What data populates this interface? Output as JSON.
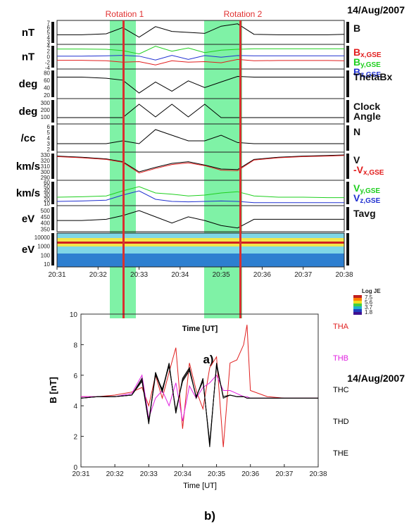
{
  "figure_a": {
    "date": "14/Aug/2007",
    "rotation_labels": [
      "Rotation 1",
      "Rotation 2"
    ],
    "x_ticks": [
      "20:31",
      "20:32",
      "20:33",
      "20:34",
      "20:35",
      "20:36",
      "20:37",
      "20:38"
    ],
    "xlabel": "Time [UT]",
    "caption": "a)",
    "panels": [
      {
        "left": "nT",
        "right": [
          "B"
        ],
        "ticks": [
          "7",
          "6",
          "5",
          "4",
          "3"
        ],
        "yrange": [
          2.5,
          7.5
        ]
      },
      {
        "left": "nT",
        "right": [
          "Bx,GSE",
          "By,GSE",
          "Bz,GSE"
        ],
        "ticks": [
          "4",
          "2",
          "0",
          "-2",
          "-4"
        ],
        "yrange": [
          -4.5,
          4.5
        ]
      },
      {
        "left": "deg",
        "right": [
          "ThetaBx"
        ],
        "ticks": [
          "80",
          "60",
          "40",
          "20"
        ],
        "yrange": [
          10,
          90
        ]
      },
      {
        "left": "deg",
        "right": [
          "Clock",
          "Angle"
        ],
        "ticks": [
          "300",
          "200",
          "100"
        ],
        "yrange": [
          0,
          360
        ]
      },
      {
        "left": "/cc",
        "right": [
          "N"
        ],
        "ticks": [
          "6",
          "5",
          "4",
          "3",
          "2"
        ],
        "yrange": [
          1.5,
          6.5
        ]
      },
      {
        "left": "km/s",
        "right": [
          "V",
          "-Vx,GSE"
        ],
        "ticks": [
          "330",
          "320",
          "310",
          "300",
          "290"
        ],
        "yrange": [
          285,
          335
        ]
      },
      {
        "left": "km/s",
        "right": [
          "Vy,GSE",
          "Vz,GSE"
        ],
        "ticks": [
          "60",
          "50",
          "40",
          "30",
          "20",
          "10"
        ],
        "yrange": [
          5,
          65
        ]
      },
      {
        "left": "eV",
        "right": [
          "Tavg"
        ],
        "ticks": [
          "500",
          "450",
          "400",
          "350"
        ],
        "yrange": [
          330,
          540
        ]
      },
      {
        "left": "eV",
        "right": [],
        "ticks": [
          "10000",
          "1000",
          "100",
          "10"
        ],
        "yrange": [
          1,
          4
        ]
      }
    ],
    "colorbar": {
      "title": "Log JE",
      "ticks": [
        "7.5",
        "5.6",
        "3.7",
        "1.8"
      ]
    },
    "colors": {
      "green_band": "#7ff2a6",
      "red_line": "#e03030",
      "bx": "#e21d1d",
      "by": "#1fcf1f",
      "bz": "#2030d0"
    }
  },
  "figure_b": {
    "date": "14/Aug/2007",
    "caption": "b)",
    "ylabel": "B [nT]",
    "xlabel": "Time [UT]",
    "y_ticks": [
      "0",
      "2",
      "4",
      "6",
      "8",
      "10"
    ],
    "x_ticks": [
      "20:31",
      "20:32",
      "20:33",
      "20:34",
      "20:35",
      "20:36",
      "20:37",
      "20:38"
    ],
    "legend": [
      {
        "name": "THA",
        "color": "#e02020"
      },
      {
        "name": "THB",
        "color": "#e020e0"
      },
      {
        "name": "THC",
        "color": "#000000"
      },
      {
        "name": "THD",
        "color": "#000000"
      },
      {
        "name": "THE",
        "color": "#000000"
      }
    ]
  },
  "chart_data": [
    {
      "type": "line",
      "title": "14/Aug/2007",
      "xlabel": "Time [UT]",
      "x_range": [
        "20:31",
        "20:38"
      ],
      "annotations": [
        {
          "label": "Rotation 1",
          "x_start": "20:32.4",
          "x_end": "20:32.9",
          "marker": "20:32.7"
        },
        {
          "label": "Rotation 2",
          "x_start": "20:34.6",
          "x_end": "20:35.5",
          "marker": "20:35.5"
        }
      ],
      "x": [
        31.0,
        31.6,
        32.2,
        32.6,
        33.0,
        33.4,
        33.8,
        34.2,
        34.6,
        35.0,
        35.4,
        35.8,
        36.4,
        37.0,
        37.6,
        38.0
      ],
      "series": [
        {
          "name": "B",
          "ylabel": "nT",
          "values": [
            4.5,
            4.5,
            4.7,
            6.0,
            4.0,
            6.2,
            5.2,
            5.0,
            4.8,
            6.3,
            6.8,
            4.6,
            4.5,
            4.5,
            4.5,
            4.6
          ]
        },
        {
          "name": "Bx,GSE",
          "ylabel": "nT",
          "values": [
            -1.3,
            -1.3,
            -1.5,
            -2.0,
            -1.8,
            -3.0,
            -1.5,
            -2.0,
            -1.8,
            -2.2,
            -1.0,
            -1.5,
            -1.4,
            -1.4,
            -1.4,
            -1.5
          ]
        },
        {
          "name": "By,GSE",
          "ylabel": "nT",
          "values": [
            2.8,
            2.8,
            2.7,
            2.2,
            1.0,
            3.8,
            2.0,
            3.2,
            1.5,
            2.4,
            2.7,
            2.9,
            2.9,
            2.9,
            2.9,
            2.9
          ]
        },
        {
          "name": "Bz,GSE",
          "ylabel": "nT",
          "values": [
            0.2,
            0.2,
            0.3,
            0.5,
            0.2,
            -1.2,
            0.5,
            -1.0,
            0.4,
            -0.2,
            0.4,
            0.3,
            0.3,
            0.3,
            0.3,
            0.3
          ]
        },
        {
          "name": "ThetaBx",
          "ylabel": "deg",
          "values": [
            68,
            68,
            65,
            60,
            25,
            55,
            30,
            58,
            40,
            55,
            70,
            68,
            68,
            68,
            68,
            68
          ]
        },
        {
          "name": "Clock Angle",
          "ylabel": "deg",
          "values": [
            90,
            90,
            90,
            90,
            280,
            100,
            280,
            100,
            280,
            90,
            90,
            90,
            90,
            90,
            90,
            90
          ]
        },
        {
          "name": "N",
          "ylabel": "/cc",
          "values": [
            3.0,
            3.0,
            3.0,
            3.5,
            3.0,
            5.5,
            4.5,
            3.5,
            3.5,
            4.5,
            3.2,
            3.0,
            3.0,
            3.0,
            3.0,
            3.0
          ]
        },
        {
          "name": "V",
          "ylabel": "km/s",
          "values": [
            328,
            326,
            323,
            318,
            300,
            308,
            315,
            318,
            312,
            305,
            304,
            322,
            326,
            328,
            329,
            330
          ]
        },
        {
          "name": "-Vx,GSE",
          "ylabel": "km/s",
          "values": [
            327,
            325,
            322,
            317,
            298,
            306,
            313,
            316,
            311,
            303,
            302,
            321,
            325,
            327,
            328,
            329
          ]
        },
        {
          "name": "Vy,GSE",
          "ylabel": "km/s",
          "values": [
            25,
            26,
            28,
            40,
            50,
            35,
            32,
            28,
            30,
            35,
            38,
            28,
            25,
            25,
            24,
            24
          ]
        },
        {
          "name": "Vz,GSE",
          "ylabel": "km/s",
          "values": [
            15,
            16,
            18,
            30,
            40,
            20,
            15,
            14,
            15,
            16,
            15,
            12,
            12,
            12,
            12,
            12
          ]
        },
        {
          "name": "Tavg",
          "ylabel": "eV",
          "values": [
            420,
            420,
            430,
            460,
            500,
            450,
            400,
            450,
            420,
            380,
            360,
            430,
            430,
            430,
            430,
            430
          ]
        }
      ]
    },
    {
      "type": "line",
      "title": "14/Aug/2007",
      "xlabel": "Time [UT]",
      "ylabel": "B [nT]",
      "ylim": [
        0,
        10
      ],
      "x": [
        31.0,
        31.5,
        32.0,
        32.5,
        32.8,
        33.0,
        33.2,
        33.4,
        33.6,
        33.8,
        34.0,
        34.2,
        34.4,
        34.6,
        34.8,
        35.0,
        35.2,
        35.4,
        35.6,
        35.8,
        35.9,
        36.0,
        36.5,
        37.0,
        37.5,
        38.0
      ],
      "series": [
        {
          "name": "THA",
          "values": [
            4.6,
            4.6,
            4.7,
            4.9,
            5.2,
            4.0,
            6.0,
            4.5,
            6.2,
            7.8,
            2.5,
            6.8,
            5.0,
            3.8,
            6.5,
            7.2,
            1.3,
            6.8,
            7.0,
            8.0,
            9.3,
            5.0,
            4.6,
            4.5,
            4.5,
            4.5
          ]
        },
        {
          "name": "THB",
          "values": [
            4.6,
            4.6,
            4.6,
            4.8,
            6.0,
            3.2,
            4.5,
            5.0,
            4.0,
            5.5,
            3.0,
            5.3,
            4.5,
            5.2,
            5.5,
            6.0,
            5.0,
            5.0,
            4.8,
            4.6,
            4.6,
            4.5,
            4.5,
            4.5,
            4.5,
            4.5
          ]
        },
        {
          "name": "THC",
          "values": [
            4.5,
            4.6,
            4.6,
            4.7,
            5.8,
            2.8,
            6.2,
            5.0,
            6.8,
            3.5,
            5.8,
            6.5,
            4.5,
            5.8,
            1.3,
            6.8,
            4.5,
            4.7,
            4.6,
            4.6,
            4.5,
            4.5,
            4.5,
            4.5,
            4.5,
            4.5
          ]
        },
        {
          "name": "THD",
          "values": [
            4.5,
            4.6,
            4.6,
            4.7,
            5.6,
            2.9,
            6.0,
            5.1,
            6.6,
            3.7,
            5.6,
            6.3,
            4.6,
            5.6,
            1.6,
            6.6,
            4.6,
            4.7,
            4.6,
            4.6,
            4.5,
            4.5,
            4.5,
            4.5,
            4.5,
            4.5
          ]
        },
        {
          "name": "THE",
          "values": [
            4.5,
            4.6,
            4.6,
            4.7,
            5.7,
            3.0,
            6.1,
            4.9,
            6.7,
            3.6,
            5.7,
            6.4,
            4.6,
            5.7,
            1.5,
            6.7,
            4.6,
            4.7,
            4.6,
            4.6,
            4.5,
            4.5,
            4.5,
            4.5,
            4.5,
            4.5
          ]
        }
      ]
    }
  ]
}
